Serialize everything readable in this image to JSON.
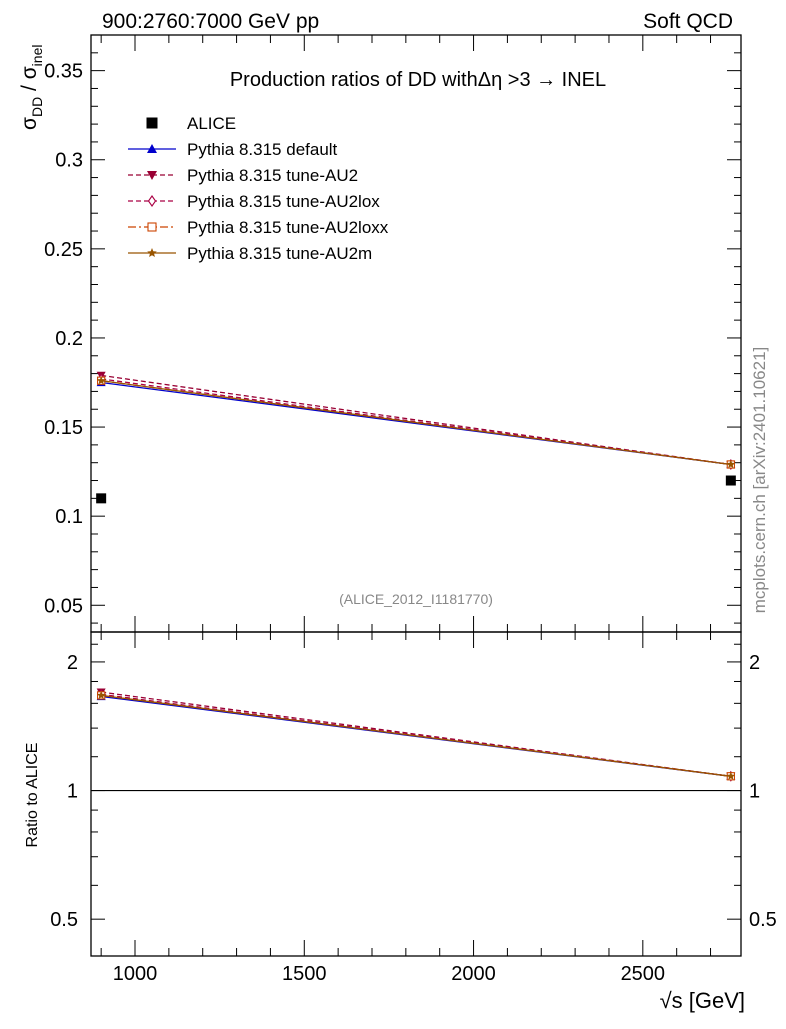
{
  "header": {
    "left": "900:2760:7000 GeV pp",
    "right": "Soft QCD"
  },
  "side_label": "mcplots.cern.ch [arXiv:2401.10621]",
  "chart_data": [
    {
      "type": "line",
      "panel": "main",
      "title": "Production ratios of DD withΔη >3 → INEL",
      "ylabel_main": "σ",
      "ylabel_sub1": "DD",
      "ylabel_sep": " / σ",
      "ylabel_sub2": "inel",
      "xlim": [
        870,
        2790
      ],
      "ylim": [
        0.035,
        0.37
      ],
      "yticks": [
        0.05,
        0.1,
        0.15,
        0.2,
        0.25,
        0.3,
        0.35
      ],
      "ytick_labels": [
        "0.05",
        "0.1",
        "0.15",
        "0.2",
        "0.25",
        "0.3",
        "0.35"
      ],
      "grid": false,
      "legend_position": "top-left",
      "annotation": "(ALICE_2012_I1181770)",
      "series": [
        {
          "name": "ALICE",
          "style": "data",
          "color": "#000000",
          "marker": "square-filled",
          "x": [
            900,
            2760
          ],
          "y": [
            0.11,
            0.12
          ]
        },
        {
          "name": "Pythia 8.315 default",
          "style": "solid",
          "color": "#0000cc",
          "marker": "triangle-up",
          "x": [
            900,
            2760
          ],
          "y": [
            0.175,
            0.129
          ]
        },
        {
          "name": "Pythia 8.315 tune-AU2",
          "style": "dashed",
          "color": "#990033",
          "marker": "triangle-down",
          "x": [
            900,
            2760
          ],
          "y": [
            0.179,
            0.129
          ]
        },
        {
          "name": "Pythia 8.315 tune-AU2lox",
          "style": "dashed",
          "color": "#aa0044",
          "marker": "diamond-open",
          "x": [
            900,
            2760
          ],
          "y": [
            0.177,
            0.129
          ]
        },
        {
          "name": "Pythia 8.315 tune-AU2loxx",
          "style": "dashdot",
          "color": "#cc4400",
          "marker": "square-open",
          "x": [
            900,
            2760
          ],
          "y": [
            0.176,
            0.129
          ]
        },
        {
          "name": "Pythia 8.315 tune-AU2m",
          "style": "solid",
          "color": "#995500",
          "marker": "star",
          "x": [
            900,
            2760
          ],
          "y": [
            0.176,
            0.129
          ]
        }
      ]
    },
    {
      "type": "line",
      "panel": "ratio",
      "ylabel": "Ratio to ALICE",
      "xlabel": "√s [GeV]",
      "xlim": [
        870,
        2790
      ],
      "xticks": [
        1000,
        1500,
        2000,
        2500
      ],
      "xtick_labels": [
        "1000",
        "1500",
        "2000",
        "2500"
      ],
      "ylim": [
        0.41,
        2.35
      ],
      "ylog": true,
      "yticks": [
        0.5,
        1,
        2
      ],
      "ytick_labels": [
        "0.5",
        "1",
        "2"
      ],
      "reference_line": 1,
      "series": [
        {
          "name": "Pythia 8.315 default",
          "style": "solid",
          "color": "#0000cc",
          "marker": "triangle-up",
          "x": [
            900,
            2760
          ],
          "y": [
            1.66,
            1.08
          ]
        },
        {
          "name": "Pythia 8.315 tune-AU2",
          "style": "dashed",
          "color": "#990033",
          "marker": "triangle-down",
          "x": [
            900,
            2760
          ],
          "y": [
            1.7,
            1.08
          ]
        },
        {
          "name": "Pythia 8.315 tune-AU2lox",
          "style": "dashed",
          "color": "#aa0044",
          "marker": "diamond-open",
          "x": [
            900,
            2760
          ],
          "y": [
            1.68,
            1.08
          ]
        },
        {
          "name": "Pythia 8.315 tune-AU2loxx",
          "style": "dashdot",
          "color": "#cc4400",
          "marker": "square-open",
          "x": [
            900,
            2760
          ],
          "y": [
            1.67,
            1.08
          ]
        },
        {
          "name": "Pythia 8.315 tune-AU2m",
          "style": "solid",
          "color": "#995500",
          "marker": "star",
          "x": [
            900,
            2760
          ],
          "y": [
            1.67,
            1.08
          ]
        }
      ]
    }
  ]
}
